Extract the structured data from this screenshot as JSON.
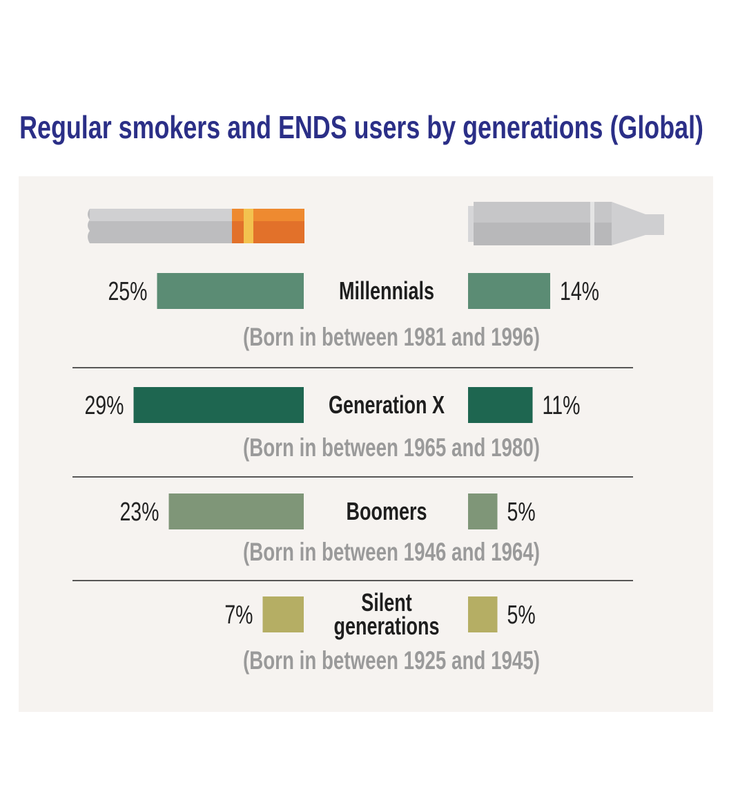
{
  "chart_data": {
    "type": "butterfly-bar",
    "title": "Regular smokers and ENDS users by generations (Global)",
    "categories": [
      "Millennials",
      "Generation X",
      "Boomers",
      "Silent generations"
    ],
    "subtitles": [
      "(Born in between 1981 and 1996)",
      "(Born in between 1965 and 1980)",
      "(Born in between 1946 and 1964)",
      "(Born in between 1925 and 1945)"
    ],
    "colors": [
      "#5b8c74",
      "#1e6650",
      "#7f9678",
      "#b5ae64"
    ],
    "series": [
      {
        "values": [
          25,
          29,
          23,
          7
        ],
        "value_labels": [
          "25%",
          "29%",
          "23%",
          "7%"
        ]
      },
      {
        "values": [
          14,
          11,
          5,
          5
        ],
        "value_labels": [
          "14%",
          "11%",
          "5%",
          "5%"
        ]
      }
    ]
  }
}
